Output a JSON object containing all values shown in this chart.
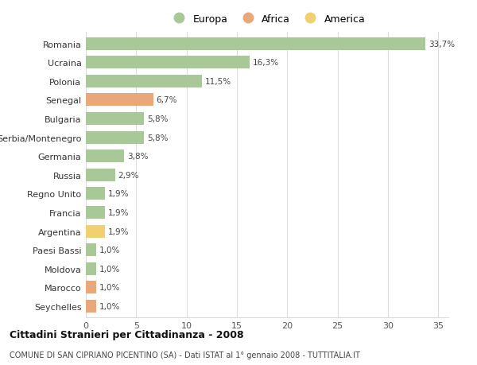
{
  "countries": [
    "Romania",
    "Ucraina",
    "Polonia",
    "Senegal",
    "Bulgaria",
    "Serbia/Montenegro",
    "Germania",
    "Russia",
    "Regno Unito",
    "Francia",
    "Argentina",
    "Paesi Bassi",
    "Moldova",
    "Marocco",
    "Seychelles"
  ],
  "values": [
    33.7,
    16.3,
    11.5,
    6.7,
    5.8,
    5.8,
    3.8,
    2.9,
    1.9,
    1.9,
    1.9,
    1.0,
    1.0,
    1.0,
    1.0
  ],
  "labels": [
    "33,7%",
    "16,3%",
    "11,5%",
    "6,7%",
    "5,8%",
    "5,8%",
    "3,8%",
    "2,9%",
    "1,9%",
    "1,9%",
    "1,9%",
    "1,0%",
    "1,0%",
    "1,0%",
    "1,0%"
  ],
  "continents": [
    "Europa",
    "Europa",
    "Europa",
    "Africa",
    "Europa",
    "Europa",
    "Europa",
    "Europa",
    "Europa",
    "Europa",
    "America",
    "Europa",
    "Europa",
    "Africa",
    "Africa"
  ],
  "colors": {
    "Europa": "#a8c897",
    "Africa": "#e8a87c",
    "America": "#f0d070"
  },
  "title": "Cittadini Stranieri per Cittadinanza - 2008",
  "subtitle": "COMUNE DI SAN CIPRIANO PICENTINO (SA) - Dati ISTAT al 1° gennaio 2008 - TUTTITALIA.IT",
  "xlim": [
    0,
    36
  ],
  "xticks": [
    0,
    5,
    10,
    15,
    20,
    25,
    30,
    35
  ],
  "background_color": "#ffffff",
  "grid_color": "#dddddd",
  "bar_height": 0.68
}
